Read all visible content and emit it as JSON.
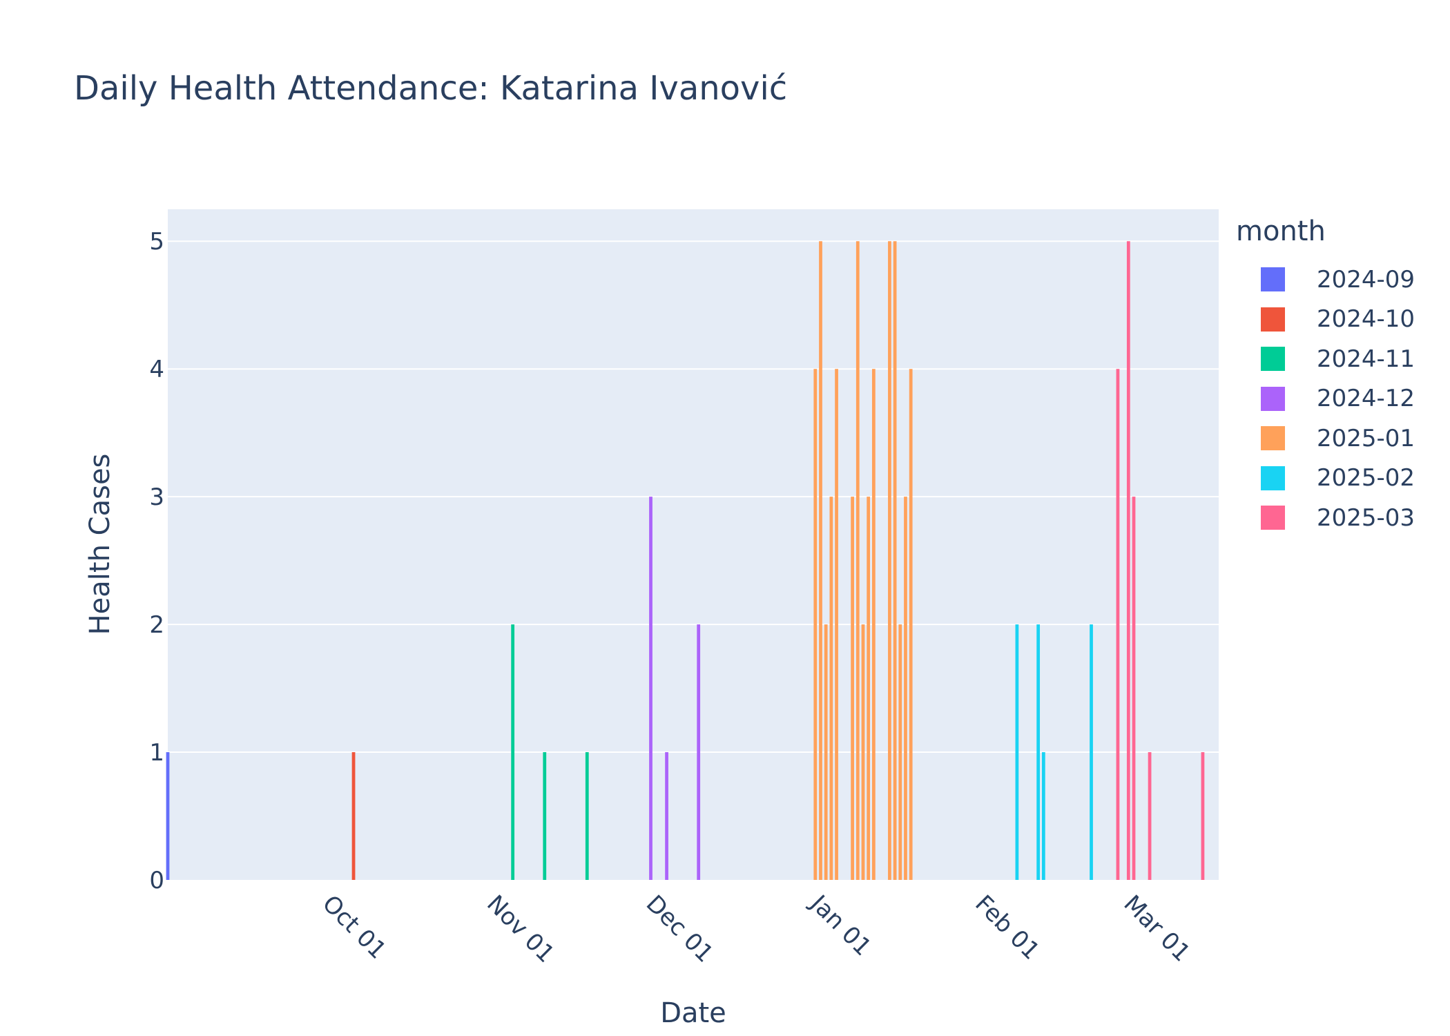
{
  "chart_data": {
    "type": "bar",
    "title": "Daily Health Attendance: Katarina Ivanović",
    "xlabel": "Date",
    "ylabel": "Health Cases",
    "xlim": [
      "2024-09-01",
      "2025-03-18"
    ],
    "ylim": [
      0,
      5.25
    ],
    "y_ticks": [
      0,
      1,
      2,
      3,
      4,
      5
    ],
    "x_ticks": [
      {
        "date": "2024-10-01",
        "label": "Oct 01"
      },
      {
        "date": "2024-11-01",
        "label": "Nov 01"
      },
      {
        "date": "2024-12-01",
        "label": "Dec 01"
      },
      {
        "date": "2025-01-01",
        "label": "Jan 01"
      },
      {
        "date": "2025-02-01",
        "label": "Feb 01"
      },
      {
        "date": "2025-03-01",
        "label": "Mar 01"
      }
    ],
    "grid": true,
    "legend_title": "month",
    "legend_position": "right",
    "series": [
      {
        "name": "2024-09",
        "color": "#636efa",
        "x": [
          "2024-09-01"
        ],
        "values": [
          1
        ]
      },
      {
        "name": "2024-10",
        "color": "#EF553B",
        "x": [
          "2024-10-06"
        ],
        "values": [
          1
        ]
      },
      {
        "name": "2024-11",
        "color": "#00cc96",
        "x": [
          "2024-11-05",
          "2024-11-11",
          "2024-11-19"
        ],
        "values": [
          2,
          1,
          1
        ]
      },
      {
        "name": "2024-12",
        "color": "#ab63fa",
        "x": [
          "2024-12-01",
          "2024-12-04",
          "2024-12-10"
        ],
        "values": [
          3,
          1,
          2
        ]
      },
      {
        "name": "2025-01",
        "color": "#FFA15A",
        "x": [
          "2025-01-01",
          "2025-01-02",
          "2025-01-03",
          "2025-01-04",
          "2025-01-05",
          "2025-01-08",
          "2025-01-09",
          "2025-01-10",
          "2025-01-11",
          "2025-01-12",
          "2025-01-15",
          "2025-01-16",
          "2025-01-17",
          "2025-01-18",
          "2025-01-19"
        ],
        "values": [
          4,
          5,
          2,
          3,
          4,
          3,
          5,
          2,
          3,
          4,
          5,
          5,
          2,
          3,
          4
        ]
      },
      {
        "name": "2025-02",
        "color": "#19d3f3",
        "x": [
          "2025-02-08",
          "2025-02-12",
          "2025-02-13",
          "2025-02-22"
        ],
        "values": [
          2,
          2,
          1,
          2
        ]
      },
      {
        "name": "2025-03",
        "color": "#FF6692",
        "x": [
          "2025-02-27",
          "2025-03-01",
          "2025-03-02",
          "2025-03-05",
          "2025-03-15"
        ],
        "values": [
          4,
          5,
          3,
          1,
          1
        ]
      }
    ]
  }
}
